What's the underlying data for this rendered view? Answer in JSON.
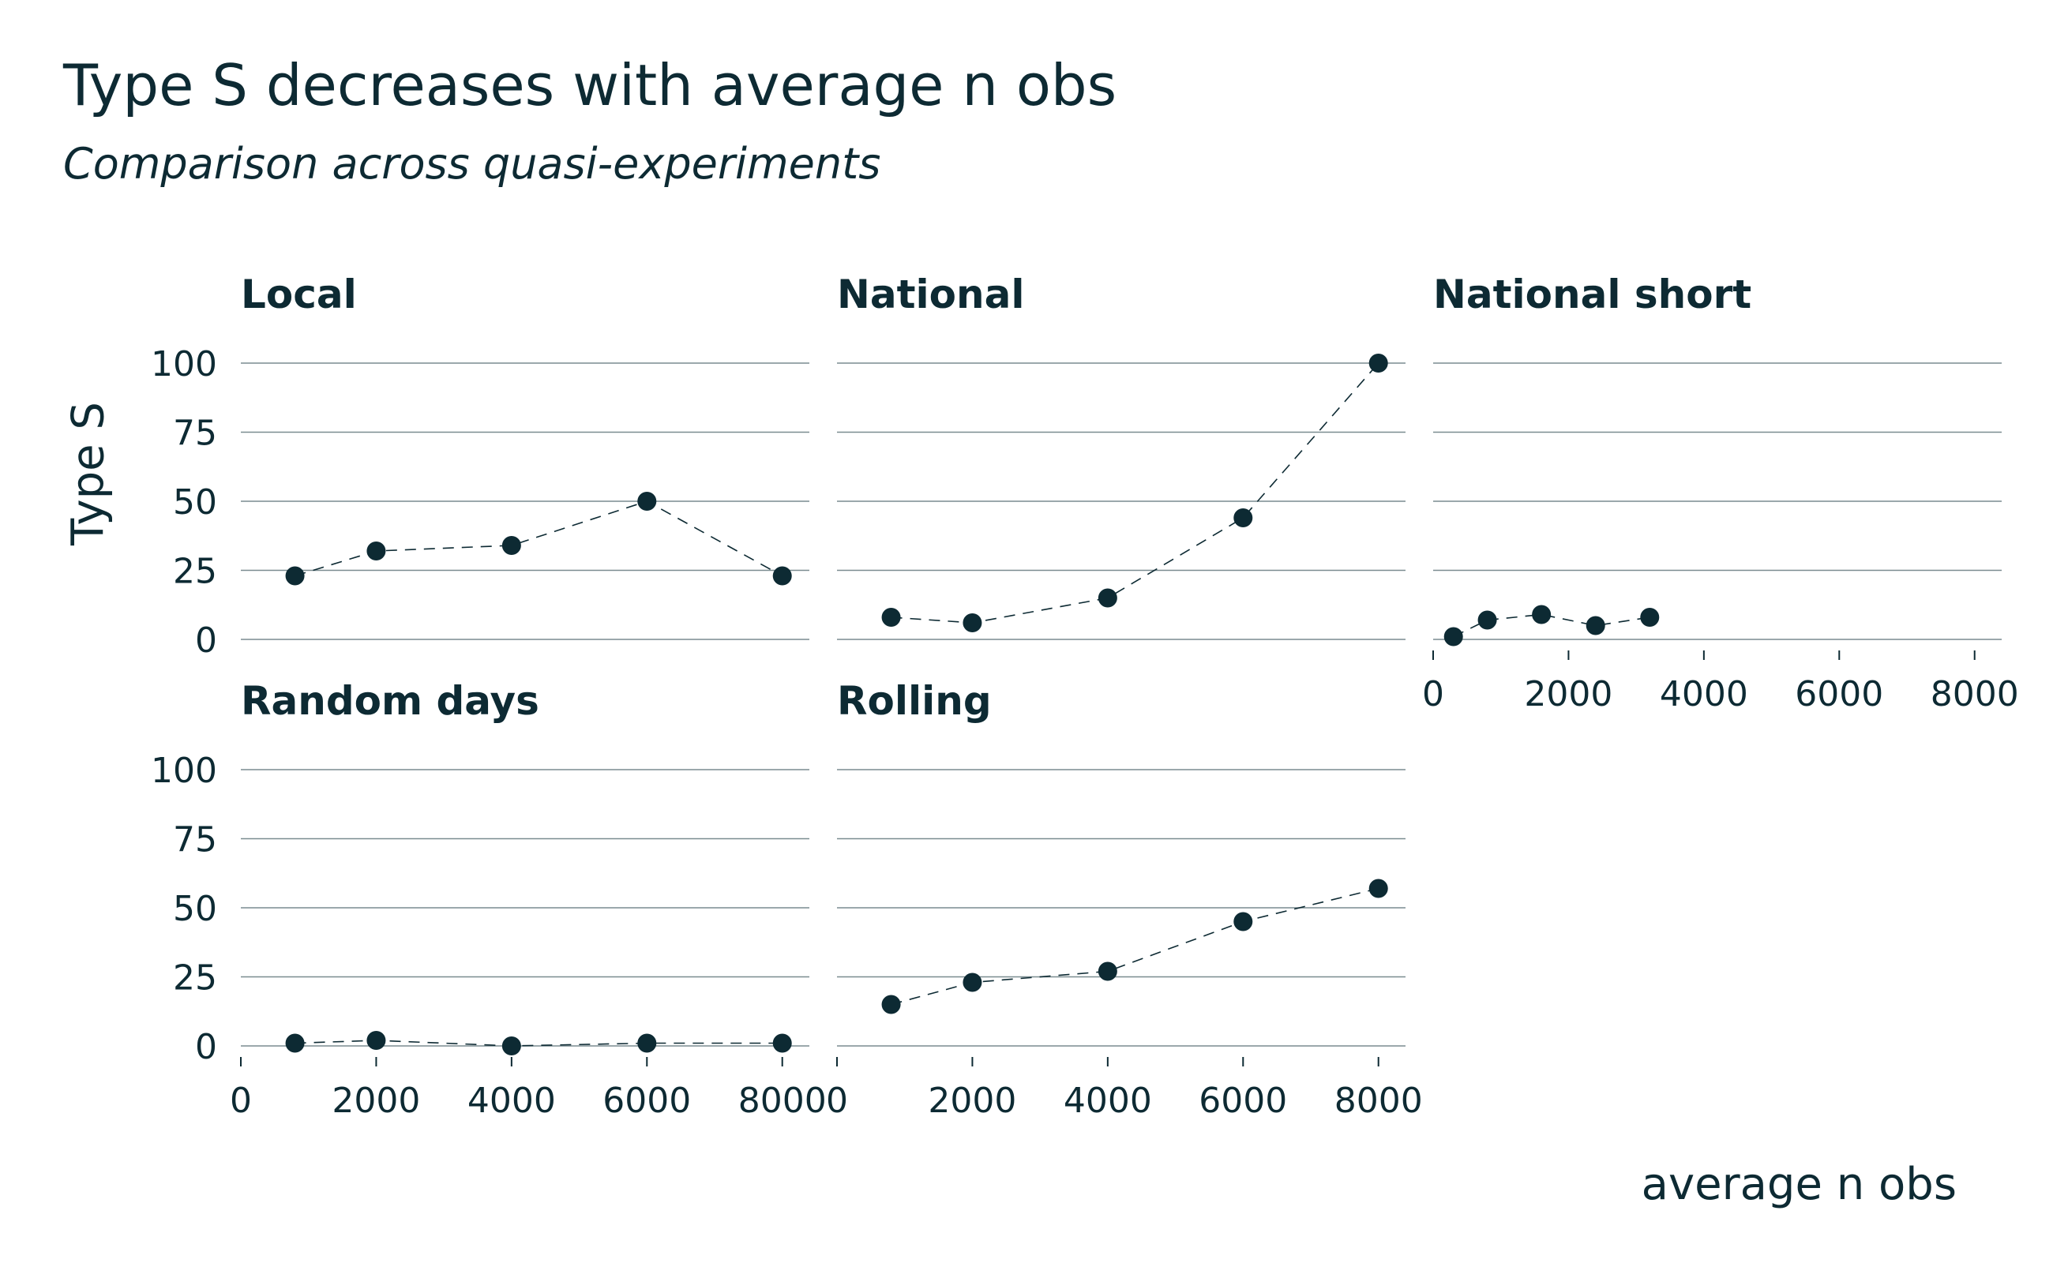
{
  "chart_data": {
    "type": "scatter",
    "title": "Type S decreases with average n obs",
    "subtitle": "Comparison across quasi-experiments",
    "xlabel": "average n obs",
    "ylabel": "Type S",
    "xlim": [
      0,
      8400
    ],
    "ylim": [
      0,
      100
    ],
    "x_ticks": [
      "0",
      "2000",
      "4000",
      "6000",
      "8000"
    ],
    "y_ticks": [
      "0",
      "25",
      "50",
      "75",
      "100"
    ],
    "grid": "horizontal",
    "point_color": "#0d2a33",
    "line_style": "dashed",
    "panels": [
      {
        "name": "Local",
        "x": [
          800,
          2000,
          4000,
          6000,
          8000
        ],
        "y": [
          23,
          32,
          34,
          50,
          23
        ]
      },
      {
        "name": "National",
        "x": [
          800,
          2000,
          4000,
          6000,
          8000
        ],
        "y": [
          8,
          6,
          15,
          44,
          100
        ]
      },
      {
        "name": "National short",
        "x": [
          300,
          800,
          1600,
          2400,
          3200
        ],
        "y": [
          1,
          7,
          9,
          5,
          8
        ]
      },
      {
        "name": "Random days",
        "x": [
          800,
          2000,
          4000,
          6000,
          8000
        ],
        "y": [
          1,
          2,
          0,
          1,
          1
        ]
      },
      {
        "name": "Rolling",
        "x": [
          800,
          2000,
          4000,
          6000,
          8000
        ],
        "y": [
          15,
          23,
          27,
          45,
          57
        ]
      }
    ]
  }
}
